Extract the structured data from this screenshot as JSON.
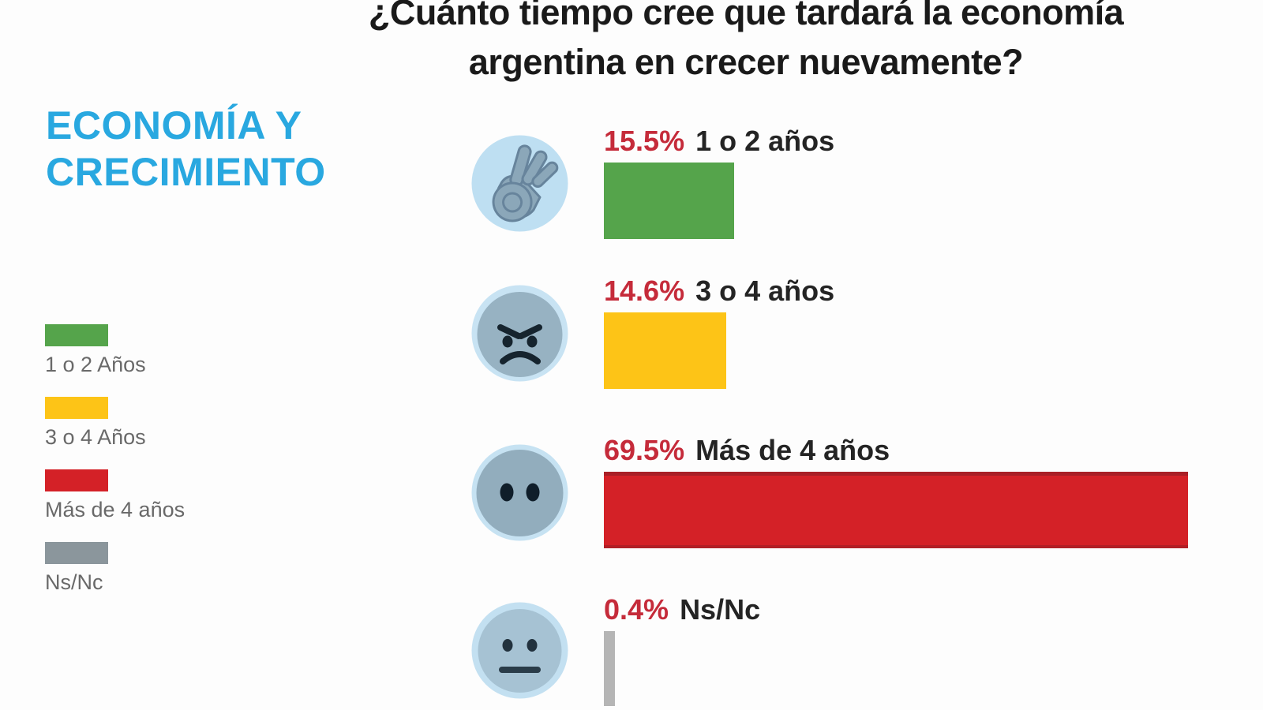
{
  "page": {
    "background": "#fdfdfd"
  },
  "title": {
    "line1": "¿Cuánto tiempo cree que tardará la economía",
    "line2": "argentina en crecer nuevamente?"
  },
  "section_heading": {
    "text": "ECONOMÍA Y CRECIMIENTO",
    "color": "#29a8e0"
  },
  "legend": {
    "items": [
      {
        "label": "1 o 2 Años",
        "color": "#55a44b"
      },
      {
        "label": "3 o 4 Años",
        "color": "#fdc417"
      },
      {
        "label": "Más de 4 años",
        "color": "#d42127"
      },
      {
        "label": "Ns/Nc",
        "color": "#8b969c"
      }
    ]
  },
  "chart_data": {
    "type": "bar",
    "orientation": "horizontal",
    "title": "¿Cuánto tiempo cree que tardará la economía argentina en crecer nuevamente?",
    "categories": [
      "1 o 2 años",
      "3 o 4 años",
      "Más de 4 años",
      "Ns/Nc"
    ],
    "values": [
      15.5,
      14.6,
      69.5,
      0.4
    ],
    "value_labels": [
      "15.5%",
      "14.6%",
      "69.5%",
      "0.4%"
    ],
    "unit": "%",
    "bar_colors": [
      "#55a44b",
      "#fdc417",
      "#d42127",
      "#b5b5b5"
    ],
    "icons": [
      "ok-hand-emoji",
      "angry-face-emoji",
      "wide-eyes-face-emoji",
      "neutral-face-emoji"
    ],
    "value_label_color": "#c52b3a",
    "category_label_color": "#242424",
    "xlim": [
      0,
      100
    ],
    "grid": false,
    "legend_position": "left"
  }
}
